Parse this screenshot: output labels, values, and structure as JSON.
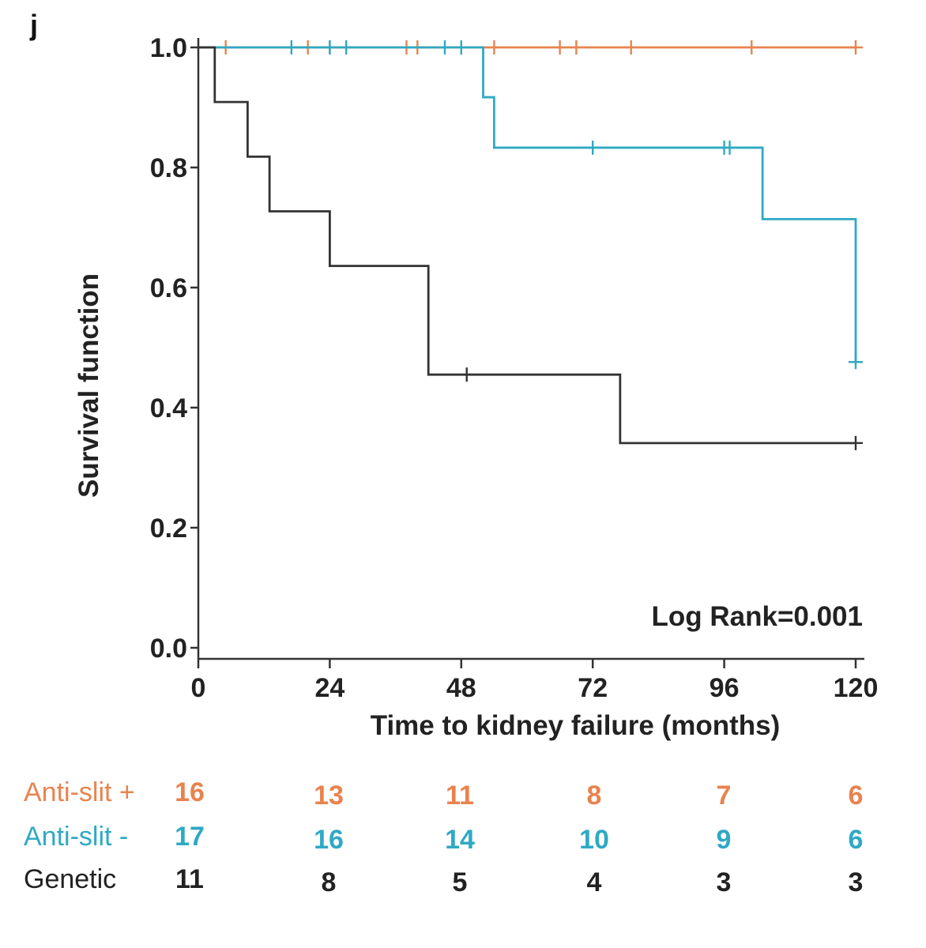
{
  "panel_label": "j",
  "chart_data": {
    "type": "line",
    "subtype": "kaplan-meier",
    "title": "",
    "xlabel": "Time to kidney failure (months)",
    "ylabel": "Survival function",
    "xlim": [
      0,
      120
    ],
    "ylim": [
      0,
      1.0
    ],
    "x_ticks": [
      0,
      24,
      48,
      72,
      96,
      120
    ],
    "x_tick_labels": [
      "0",
      "24",
      "48",
      "72",
      "96",
      "120"
    ],
    "y_ticks": [
      0.0,
      0.2,
      0.4,
      0.6,
      0.8,
      1.0
    ],
    "y_tick_labels": [
      "0.0",
      "0.2",
      "0.4",
      "0.6",
      "0.8",
      "1.0"
    ],
    "annotation": "Log Rank=0.001",
    "series": [
      {
        "name": "Anti-slit +",
        "color": "#E8834E",
        "steps": [
          [
            0,
            1.0
          ],
          [
            120,
            1.0
          ]
        ],
        "censored": [
          [
            5,
            1.0
          ],
          [
            20,
            1.0
          ],
          [
            24,
            1.0
          ],
          [
            38,
            1.0
          ],
          [
            40,
            1.0
          ],
          [
            54,
            1.0
          ],
          [
            66,
            1.0
          ],
          [
            69,
            1.0
          ],
          [
            79,
            1.0
          ],
          [
            101,
            1.0
          ],
          [
            120,
            1.0
          ]
        ]
      },
      {
        "name": "Anti-slit -",
        "color": "#2FA9C4",
        "steps": [
          [
            0,
            1.0
          ],
          [
            52,
            0.917
          ],
          [
            54,
            0.833
          ],
          [
            103,
            0.714
          ],
          [
            120,
            0.476
          ]
        ],
        "censored": [
          [
            17,
            1.0
          ],
          [
            24,
            1.0
          ],
          [
            27,
            1.0
          ],
          [
            45,
            1.0
          ],
          [
            48,
            1.0
          ],
          [
            72,
            0.833
          ],
          [
            96,
            0.833
          ],
          [
            97,
            0.833
          ],
          [
            120,
            0.476
          ]
        ]
      },
      {
        "name": "Genetic",
        "color": "#333333",
        "steps": [
          [
            0,
            1.0
          ],
          [
            3,
            0.909
          ],
          [
            9,
            0.818
          ],
          [
            13,
            0.727
          ],
          [
            24,
            0.636
          ],
          [
            42,
            0.455
          ],
          [
            77,
            0.341
          ]
        ],
        "end_x": 120,
        "censored": [
          [
            49,
            0.455
          ],
          [
            120,
            0.341
          ]
        ]
      }
    ],
    "risk_table": {
      "times": [
        0,
        24,
        48,
        72,
        96,
        120
      ],
      "rows": [
        {
          "label": "Anti-slit +",
          "color": "#E8834E",
          "values": [
            "16",
            "13",
            "11",
            "8",
            "7",
            "6"
          ]
        },
        {
          "label": "Anti-slit -",
          "color": "#2FA9C4",
          "values": [
            "17",
            "16",
            "14",
            "10",
            "9",
            "6"
          ]
        },
        {
          "label": "Genetic",
          "color": "#222222",
          "values": [
            "11",
            "8",
            "5",
            "4",
            "3",
            "3"
          ]
        }
      ]
    }
  }
}
